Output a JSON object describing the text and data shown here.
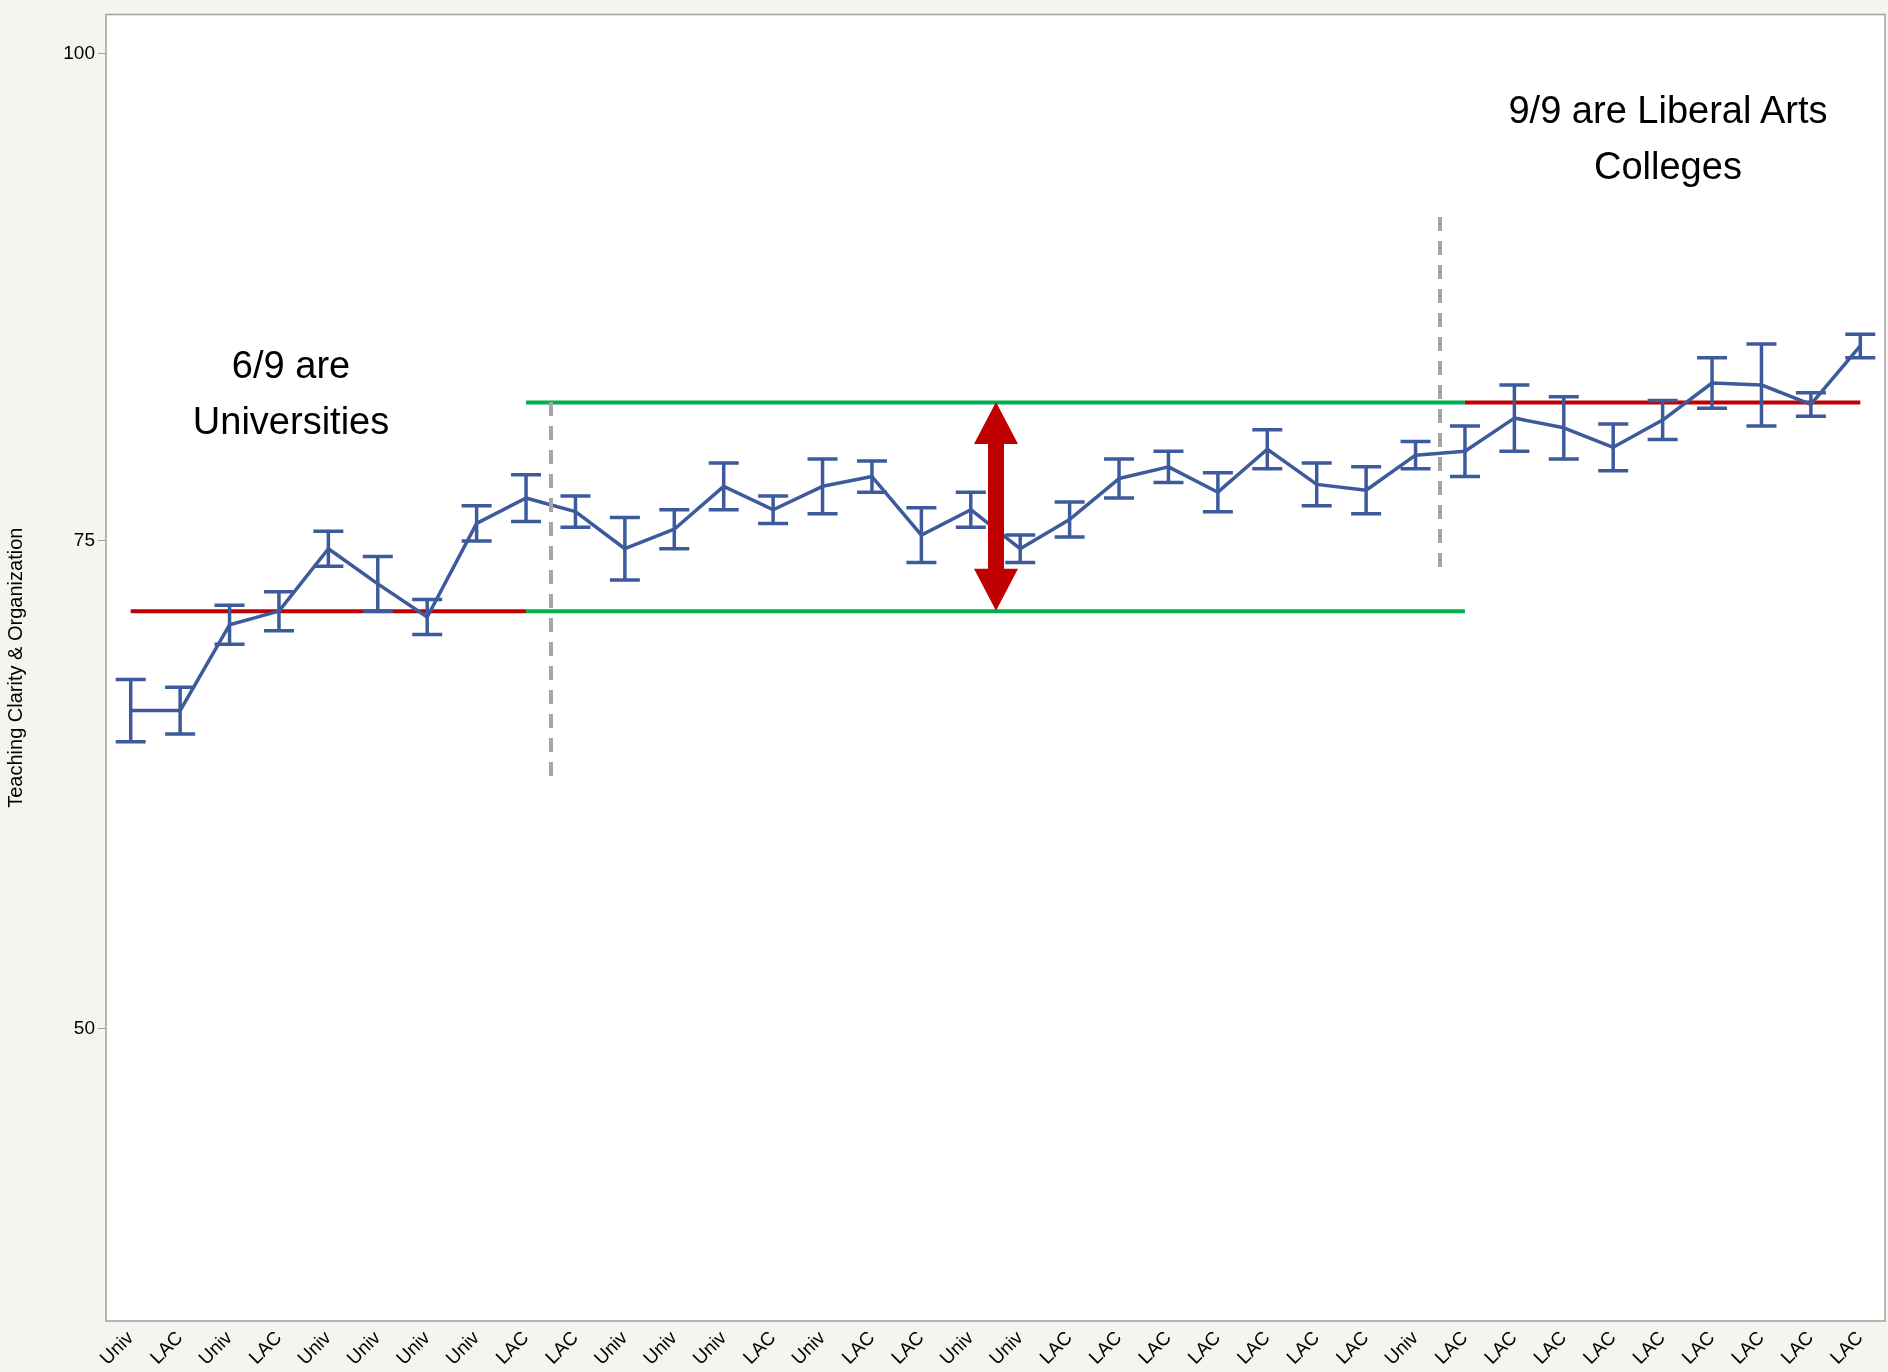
{
  "chart_data": {
    "type": "line",
    "ylabel": "Teaching Clarity & Organization",
    "categories": [
      "Univ",
      "LAC",
      "Univ",
      "LAC",
      "Univ",
      "Univ",
      "Univ",
      "Univ",
      "LAC",
      "LAC",
      "Univ",
      "Univ",
      "Univ",
      "LAC",
      "Univ",
      "LAC",
      "LAC",
      "Univ",
      "Univ",
      "LAC",
      "LAC",
      "LAC",
      "LAC",
      "LAC",
      "LAC",
      "LAC",
      "Univ",
      "LAC",
      "LAC",
      "LAC",
      "LAC",
      "LAC",
      "LAC",
      "LAC",
      "LAC",
      "LAC"
    ],
    "series": [
      {
        "color": "#3d5a9c",
        "values": [
          66.3,
          66.3,
          70.7,
          71.4,
          74.6,
          72.8,
          71.1,
          75.9,
          77.2,
          76.5,
          74.6,
          75.6,
          77.8,
          76.6,
          77.8,
          78.3,
          75.3,
          76.6,
          74.6,
          76.1,
          78.2,
          78.8,
          77.5,
          79.7,
          77.9,
          77.6,
          79.4,
          79.6,
          81.3,
          80.8,
          79.8,
          81.2,
          83.1,
          83.0,
          82.0,
          85.0
        ],
        "errors": [
          1.6,
          1.2,
          1.0,
          1.0,
          0.9,
          1.4,
          0.9,
          0.9,
          1.2,
          0.8,
          1.6,
          1.0,
          1.2,
          0.7,
          1.4,
          0.8,
          1.4,
          0.9,
          0.7,
          0.9,
          1.0,
          0.8,
          1.0,
          1.0,
          1.1,
          1.2,
          0.7,
          1.3,
          1.7,
          1.6,
          1.2,
          1.0,
          1.3,
          2.1,
          0.6,
          0.6
        ]
      },
      {
        "color": "#c00000",
        "values": [
          71.4,
          71.4,
          71.4,
          71.4,
          71.4,
          71.4,
          71.4,
          71.4,
          71.4,
          null,
          null,
          null,
          null,
          null,
          null,
          null,
          null,
          null,
          null,
          null,
          null,
          null,
          null,
          null,
          null,
          null,
          null,
          null,
          null,
          null,
          null,
          null,
          null,
          null,
          null,
          null
        ]
      },
      {
        "color": "#00b050",
        "values": [
          null,
          null,
          null,
          null,
          null,
          null,
          null,
          null,
          71.4,
          71.4,
          71.4,
          71.4,
          71.4,
          71.4,
          71.4,
          71.4,
          71.4,
          71.4,
          71.4,
          71.4,
          71.4,
          71.4,
          71.4,
          71.4,
          71.4,
          71.4,
          71.4,
          71.4,
          null,
          null,
          null,
          null,
          null,
          null,
          null,
          null
        ]
      },
      {
        "color": "#00b050",
        "values": [
          null,
          null,
          null,
          null,
          null,
          null,
          null,
          null,
          82.1,
          82.1,
          82.1,
          82.1,
          82.1,
          82.1,
          82.1,
          82.1,
          82.1,
          82.1,
          82.1,
          82.1,
          82.1,
          82.1,
          82.1,
          82.1,
          82.1,
          82.1,
          82.1,
          82.1,
          null,
          null,
          null,
          null,
          null,
          null,
          null,
          null
        ]
      },
      {
        "color": "#c00000",
        "values": [
          null,
          null,
          null,
          null,
          null,
          null,
          null,
          null,
          null,
          null,
          null,
          null,
          null,
          null,
          null,
          null,
          null,
          null,
          null,
          null,
          null,
          null,
          null,
          null,
          null,
          null,
          null,
          82.1,
          82.1,
          82.1,
          82.1,
          82.1,
          82.1,
          82.1,
          82.1,
          82.1
        ]
      }
    ],
    "annotations": [
      "6/9 are\nUniversities",
      "9/9 are Liberal Arts\nColleges"
    ],
    "ylim": [
      35,
      102
    ],
    "yticks": [
      50,
      75,
      100
    ],
    "grid": false,
    "legend": false,
    "marker": "none",
    "line_style": "solid"
  }
}
